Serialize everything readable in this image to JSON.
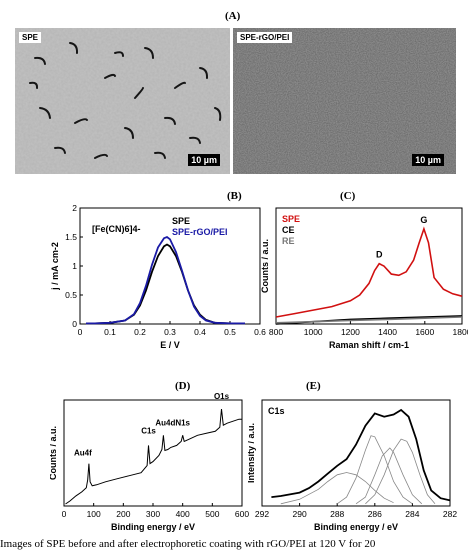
{
  "panel_labels": {
    "A": "(A)",
    "B": "(B)",
    "C": "(C)",
    "D": "(D)",
    "E": "(E)"
  },
  "sem": {
    "left_tag": "SPE",
    "right_tag": "SPE-rGO/PEI",
    "left_scale": "10 µm",
    "right_scale": "10 µm"
  },
  "caption": "Images of SPE before and after electrophoretic coating with rGO/PEI at 120 V for 20",
  "chart_data": [
    {
      "type": "line",
      "panel": "B",
      "annotation": "[Fe(CN)6]4-",
      "xlabel": "E / V",
      "ylabel": "j / mA cm-2",
      "xlim": [
        0,
        0.6
      ],
      "ylim": [
        0,
        2
      ],
      "xticks": [
        "0",
        "0.1",
        "0.2",
        "0.3",
        "0.4",
        "0.5",
        "0.6"
      ],
      "yticks": [
        "0",
        "0.5",
        "1",
        "1.5",
        "2"
      ],
      "series": [
        {
          "name": "SPE",
          "color": "#000000",
          "x": [
            0.02,
            0.05,
            0.1,
            0.15,
            0.18,
            0.2,
            0.22,
            0.24,
            0.26,
            0.28,
            0.29,
            0.3,
            0.32,
            0.34,
            0.36,
            0.38,
            0.4,
            0.42,
            0.45,
            0.5,
            0.55
          ],
          "y": [
            0.01,
            0.01,
            0.02,
            0.06,
            0.16,
            0.32,
            0.58,
            0.9,
            1.17,
            1.34,
            1.37,
            1.34,
            1.17,
            0.9,
            0.58,
            0.32,
            0.16,
            0.07,
            0.02,
            0.01,
            0.01
          ]
        },
        {
          "name": "SPE-rGO/PEI",
          "color": "#1a1aa6",
          "x": [
            0.02,
            0.05,
            0.1,
            0.15,
            0.18,
            0.2,
            0.22,
            0.24,
            0.26,
            0.28,
            0.29,
            0.3,
            0.32,
            0.34,
            0.36,
            0.38,
            0.4,
            0.42,
            0.45,
            0.5,
            0.55
          ],
          "y": [
            0.01,
            0.01,
            0.02,
            0.06,
            0.17,
            0.36,
            0.66,
            1.02,
            1.32,
            1.48,
            1.5,
            1.46,
            1.24,
            0.92,
            0.58,
            0.3,
            0.14,
            0.06,
            0.02,
            0.01,
            0.01
          ]
        }
      ]
    },
    {
      "type": "line",
      "panel": "C",
      "xlabel": "Raman shift / cm-1",
      "ylabel": "Counts / a.u.",
      "xlim": [
        800,
        1800
      ],
      "xticks": [
        "800",
        "1000",
        "1200",
        "1400",
        "1600",
        "1800"
      ],
      "peak_labels": [
        "D",
        "G"
      ],
      "peak_x": [
        1355,
        1595
      ],
      "series": [
        {
          "name": "SPE",
          "color": "#d11010",
          "x": [
            800,
            900,
            1000,
            1100,
            1200,
            1250,
            1300,
            1330,
            1355,
            1380,
            1420,
            1460,
            1500,
            1540,
            1570,
            1595,
            1620,
            1650,
            1700,
            1750,
            1800
          ],
          "y": [
            0.06,
            0.09,
            0.12,
            0.15,
            0.2,
            0.25,
            0.35,
            0.46,
            0.52,
            0.5,
            0.43,
            0.42,
            0.45,
            0.55,
            0.7,
            0.82,
            0.7,
            0.4,
            0.3,
            0.26,
            0.24
          ]
        },
        {
          "name": "CE",
          "color": "#000000",
          "x": [
            800,
            1000,
            1200,
            1400,
            1600,
            1800
          ],
          "y": [
            0.0,
            0.02,
            0.04,
            0.05,
            0.06,
            0.07
          ]
        },
        {
          "name": "RE",
          "color": "#777777",
          "x": [
            800,
            1000,
            1200,
            1400,
            1600,
            1800
          ],
          "y": [
            0.01,
            0.02,
            0.03,
            0.04,
            0.05,
            0.06
          ]
        }
      ]
    },
    {
      "type": "line",
      "panel": "D",
      "xlabel": "Binding energy / eV",
      "ylabel": "Counts / a.u.",
      "xlim": [
        0,
        600
      ],
      "xticks": [
        "0",
        "100",
        "200",
        "300",
        "400",
        "500",
        "600"
      ],
      "peak_labels": [
        "Au4f",
        "C1s",
        "Au4d",
        "N1s",
        "O1s"
      ],
      "peak_x": [
        84,
        285,
        335,
        400,
        531
      ],
      "series": [
        {
          "name": "",
          "color": "#000000",
          "x": [
            5,
            20,
            40,
            60,
            75,
            80,
            84,
            88,
            95,
            110,
            140,
            180,
            220,
            260,
            280,
            285,
            290,
            300,
            320,
            330,
            335,
            340,
            350,
            360,
            380,
            395,
            400,
            405,
            420,
            450,
            480,
            510,
            525,
            531,
            537,
            550,
            570,
            590,
            600
          ],
          "y": [
            0.02,
            0.05,
            0.1,
            0.14,
            0.18,
            0.26,
            0.42,
            0.24,
            0.2,
            0.21,
            0.24,
            0.27,
            0.3,
            0.33,
            0.4,
            0.6,
            0.42,
            0.44,
            0.5,
            0.56,
            0.7,
            0.55,
            0.56,
            0.58,
            0.6,
            0.64,
            0.7,
            0.64,
            0.66,
            0.7,
            0.72,
            0.74,
            0.78,
            0.96,
            0.8,
            0.82,
            0.84,
            0.86,
            0.86
          ]
        }
      ]
    },
    {
      "type": "line",
      "panel": "E",
      "annotation": "C1s",
      "xlabel": "Binding energy / eV",
      "ylabel": "Intensity / a.u.",
      "xlim": [
        292,
        282
      ],
      "xticks": [
        "292",
        "290",
        "288",
        "286",
        "284",
        "282"
      ],
      "series": [
        {
          "name": "",
          "color": "#000000",
          "role": "measured",
          "x": [
            291.5,
            291,
            290,
            289.5,
            289,
            288.5,
            288,
            287.5,
            287,
            286.5,
            286,
            285.5,
            285,
            284.6,
            284.2,
            283.8,
            283.4,
            283,
            282.5,
            282
          ],
          "y": [
            0.08,
            0.09,
            0.12,
            0.16,
            0.22,
            0.29,
            0.36,
            0.42,
            0.55,
            0.72,
            0.83,
            0.8,
            0.82,
            0.86,
            0.8,
            0.6,
            0.32,
            0.14,
            0.07,
            0.05
          ]
        },
        {
          "name": "",
          "color": "#888888",
          "role": "component",
          "x": [
            291,
            290,
            289,
            288.5,
            288,
            287.5,
            287,
            286.5,
            286,
            285.5,
            285
          ],
          "y": [
            0.02,
            0.06,
            0.15,
            0.22,
            0.28,
            0.3,
            0.28,
            0.22,
            0.14,
            0.07,
            0.03
          ]
        },
        {
          "name": "",
          "color": "#888888",
          "role": "component",
          "x": [
            288,
            287.5,
            287,
            286.5,
            286.2,
            286,
            285.5,
            285,
            284.5,
            284
          ],
          "y": [
            0.02,
            0.08,
            0.25,
            0.5,
            0.63,
            0.62,
            0.45,
            0.22,
            0.08,
            0.02
          ]
        },
        {
          "name": "",
          "color": "#888888",
          "role": "component",
          "x": [
            287,
            286.5,
            286,
            285.6,
            285.2,
            285,
            284.5,
            284,
            283.5
          ],
          "y": [
            0.02,
            0.08,
            0.28,
            0.45,
            0.52,
            0.48,
            0.28,
            0.1,
            0.02
          ]
        },
        {
          "name": "",
          "color": "#888888",
          "role": "component",
          "x": [
            286.5,
            286,
            285.5,
            285,
            284.6,
            284.3,
            284,
            283.6,
            283.2,
            282.8
          ],
          "y": [
            0.02,
            0.1,
            0.28,
            0.5,
            0.6,
            0.58,
            0.48,
            0.28,
            0.1,
            0.02
          ]
        }
      ]
    }
  ]
}
